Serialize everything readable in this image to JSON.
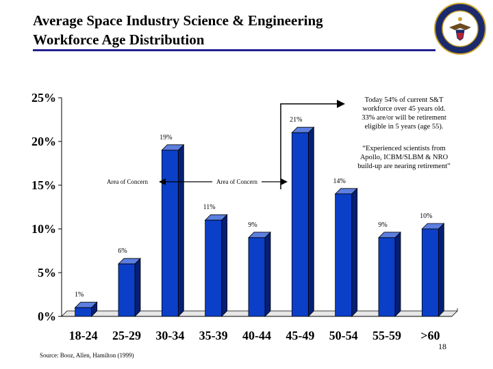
{
  "slide": {
    "title_line1": "Average Space Industry Science & Engineering",
    "title_line2": "Workforce Age Distribution",
    "seal_text": "DEPARTMENT OF DEFENSE · UNITED STATES OF AMERICA",
    "page_number": "18",
    "source": "Source:  Booz, Allen, Hamilton (1999)"
  },
  "annotations": {
    "concern_left": "Area of Concern",
    "concern_right": "Area of Concern",
    "note_today": [
      "Today 54% of current S&T",
      "workforce over 45 years old.",
      "33% are/or will be retirement",
      "eligible in 5 years (age 55)."
    ],
    "note_quote": [
      "“Experienced scientists from",
      "Apollo, ICBM/SLBM  & NRO",
      "build-up are nearing retirement”"
    ]
  },
  "colors": {
    "bar_front": "#0b3fc8",
    "bar_side": "#061f73",
    "bar_top": "#5c7fe0",
    "title_rule": "#1f1f8f"
  },
  "chart_data": {
    "type": "bar",
    "title": "",
    "xlabel": "",
    "ylabel": "",
    "categories": [
      "18-24",
      "25-29",
      "30-34",
      "35-39",
      "40-44",
      "45-49",
      "50-54",
      "55-59",
      ">60"
    ],
    "values": [
      1,
      6,
      19,
      11,
      9,
      21,
      14,
      9,
      10
    ],
    "data_labels": [
      "1%",
      "6%",
      "19%",
      "11%",
      "9%",
      "21%",
      "14%",
      "9%",
      "10%"
    ],
    "yticks": [
      "0%",
      "5%",
      "10%",
      "15%",
      "20%",
      "25%"
    ],
    "ylim": [
      0,
      25
    ],
    "grid": false,
    "legend": false
  }
}
